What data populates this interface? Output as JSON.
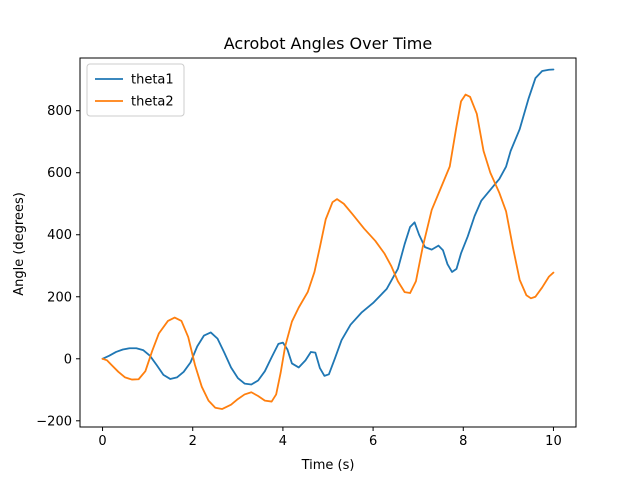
{
  "chart_data": {
    "type": "line",
    "title": "Acrobot Angles Over Time",
    "xlabel": "Time (s)",
    "ylabel": "Angle (degrees)",
    "xlim": [
      -0.5,
      10.5
    ],
    "ylim": [
      -220,
      970
    ],
    "xticks": [
      0,
      2,
      4,
      6,
      8,
      10
    ],
    "yticks": [
      -200,
      0,
      200,
      400,
      600,
      800
    ],
    "grid": false,
    "legend_position": "top-left",
    "series": [
      {
        "name": "theta1",
        "color": "#1f77b4",
        "points": [
          [
            0.0,
            0
          ],
          [
            0.15,
            10
          ],
          [
            0.3,
            22
          ],
          [
            0.45,
            30
          ],
          [
            0.6,
            34
          ],
          [
            0.75,
            34
          ],
          [
            0.9,
            28
          ],
          [
            1.05,
            10
          ],
          [
            1.2,
            -20
          ],
          [
            1.35,
            -52
          ],
          [
            1.5,
            -65
          ],
          [
            1.65,
            -60
          ],
          [
            1.8,
            -42
          ],
          [
            1.95,
            -12
          ],
          [
            2.1,
            40
          ],
          [
            2.25,
            75
          ],
          [
            2.4,
            85
          ],
          [
            2.55,
            65
          ],
          [
            2.7,
            20
          ],
          [
            2.85,
            -28
          ],
          [
            3.0,
            -62
          ],
          [
            3.15,
            -80
          ],
          [
            3.3,
            -83
          ],
          [
            3.45,
            -70
          ],
          [
            3.6,
            -40
          ],
          [
            3.75,
            5
          ],
          [
            3.9,
            48
          ],
          [
            4.0,
            52
          ],
          [
            4.1,
            30
          ],
          [
            4.2,
            -15
          ],
          [
            4.35,
            -28
          ],
          [
            4.5,
            -5
          ],
          [
            4.62,
            22
          ],
          [
            4.72,
            20
          ],
          [
            4.82,
            -30
          ],
          [
            4.92,
            -55
          ],
          [
            5.02,
            -50
          ],
          [
            5.15,
            0
          ],
          [
            5.3,
            60
          ],
          [
            5.5,
            110
          ],
          [
            5.75,
            150
          ],
          [
            6.0,
            180
          ],
          [
            6.3,
            225
          ],
          [
            6.55,
            290
          ],
          [
            6.7,
            370
          ],
          [
            6.82,
            425
          ],
          [
            6.92,
            440
          ],
          [
            7.02,
            400
          ],
          [
            7.15,
            360
          ],
          [
            7.3,
            352
          ],
          [
            7.45,
            365
          ],
          [
            7.55,
            350
          ],
          [
            7.65,
            305
          ],
          [
            7.75,
            280
          ],
          [
            7.85,
            290
          ],
          [
            7.95,
            340
          ],
          [
            8.1,
            395
          ],
          [
            8.25,
            460
          ],
          [
            8.4,
            510
          ],
          [
            8.6,
            545
          ],
          [
            8.8,
            580
          ],
          [
            8.95,
            620
          ],
          [
            9.05,
            670
          ],
          [
            9.25,
            740
          ],
          [
            9.45,
            840
          ],
          [
            9.6,
            905
          ],
          [
            9.75,
            928
          ],
          [
            9.9,
            932
          ],
          [
            10.0,
            933
          ]
        ]
      },
      {
        "name": "theta2",
        "color": "#ff7f0e",
        "points": [
          [
            0.0,
            0
          ],
          [
            0.1,
            -5
          ],
          [
            0.2,
            -20
          ],
          [
            0.35,
            -42
          ],
          [
            0.5,
            -60
          ],
          [
            0.65,
            -67
          ],
          [
            0.8,
            -66
          ],
          [
            0.95,
            -40
          ],
          [
            1.1,
            25
          ],
          [
            1.25,
            82
          ],
          [
            1.45,
            122
          ],
          [
            1.6,
            133
          ],
          [
            1.75,
            122
          ],
          [
            1.9,
            70
          ],
          [
            2.05,
            -20
          ],
          [
            2.2,
            -90
          ],
          [
            2.35,
            -135
          ],
          [
            2.5,
            -158
          ],
          [
            2.65,
            -162
          ],
          [
            2.85,
            -148
          ],
          [
            3.0,
            -130
          ],
          [
            3.15,
            -115
          ],
          [
            3.3,
            -108
          ],
          [
            3.45,
            -120
          ],
          [
            3.6,
            -135
          ],
          [
            3.75,
            -138
          ],
          [
            3.85,
            -115
          ],
          [
            3.95,
            -45
          ],
          [
            4.05,
            40
          ],
          [
            4.2,
            120
          ],
          [
            4.35,
            165
          ],
          [
            4.55,
            215
          ],
          [
            4.7,
            280
          ],
          [
            4.82,
            360
          ],
          [
            4.95,
            450
          ],
          [
            5.1,
            505
          ],
          [
            5.2,
            515
          ],
          [
            5.35,
            500
          ],
          [
            5.55,
            465
          ],
          [
            5.8,
            420
          ],
          [
            6.05,
            380
          ],
          [
            6.25,
            340
          ],
          [
            6.4,
            300
          ],
          [
            6.55,
            250
          ],
          [
            6.7,
            215
          ],
          [
            6.82,
            212
          ],
          [
            6.95,
            250
          ],
          [
            7.1,
            360
          ],
          [
            7.3,
            480
          ],
          [
            7.5,
            550
          ],
          [
            7.7,
            620
          ],
          [
            7.85,
            750
          ],
          [
            7.95,
            830
          ],
          [
            8.05,
            852
          ],
          [
            8.15,
            845
          ],
          [
            8.3,
            790
          ],
          [
            8.45,
            670
          ],
          [
            8.6,
            600
          ],
          [
            8.8,
            535
          ],
          [
            8.95,
            475
          ],
          [
            9.1,
            360
          ],
          [
            9.25,
            255
          ],
          [
            9.4,
            205
          ],
          [
            9.5,
            195
          ],
          [
            9.6,
            200
          ],
          [
            9.75,
            230
          ],
          [
            9.9,
            265
          ],
          [
            10.0,
            278
          ]
        ]
      }
    ]
  }
}
